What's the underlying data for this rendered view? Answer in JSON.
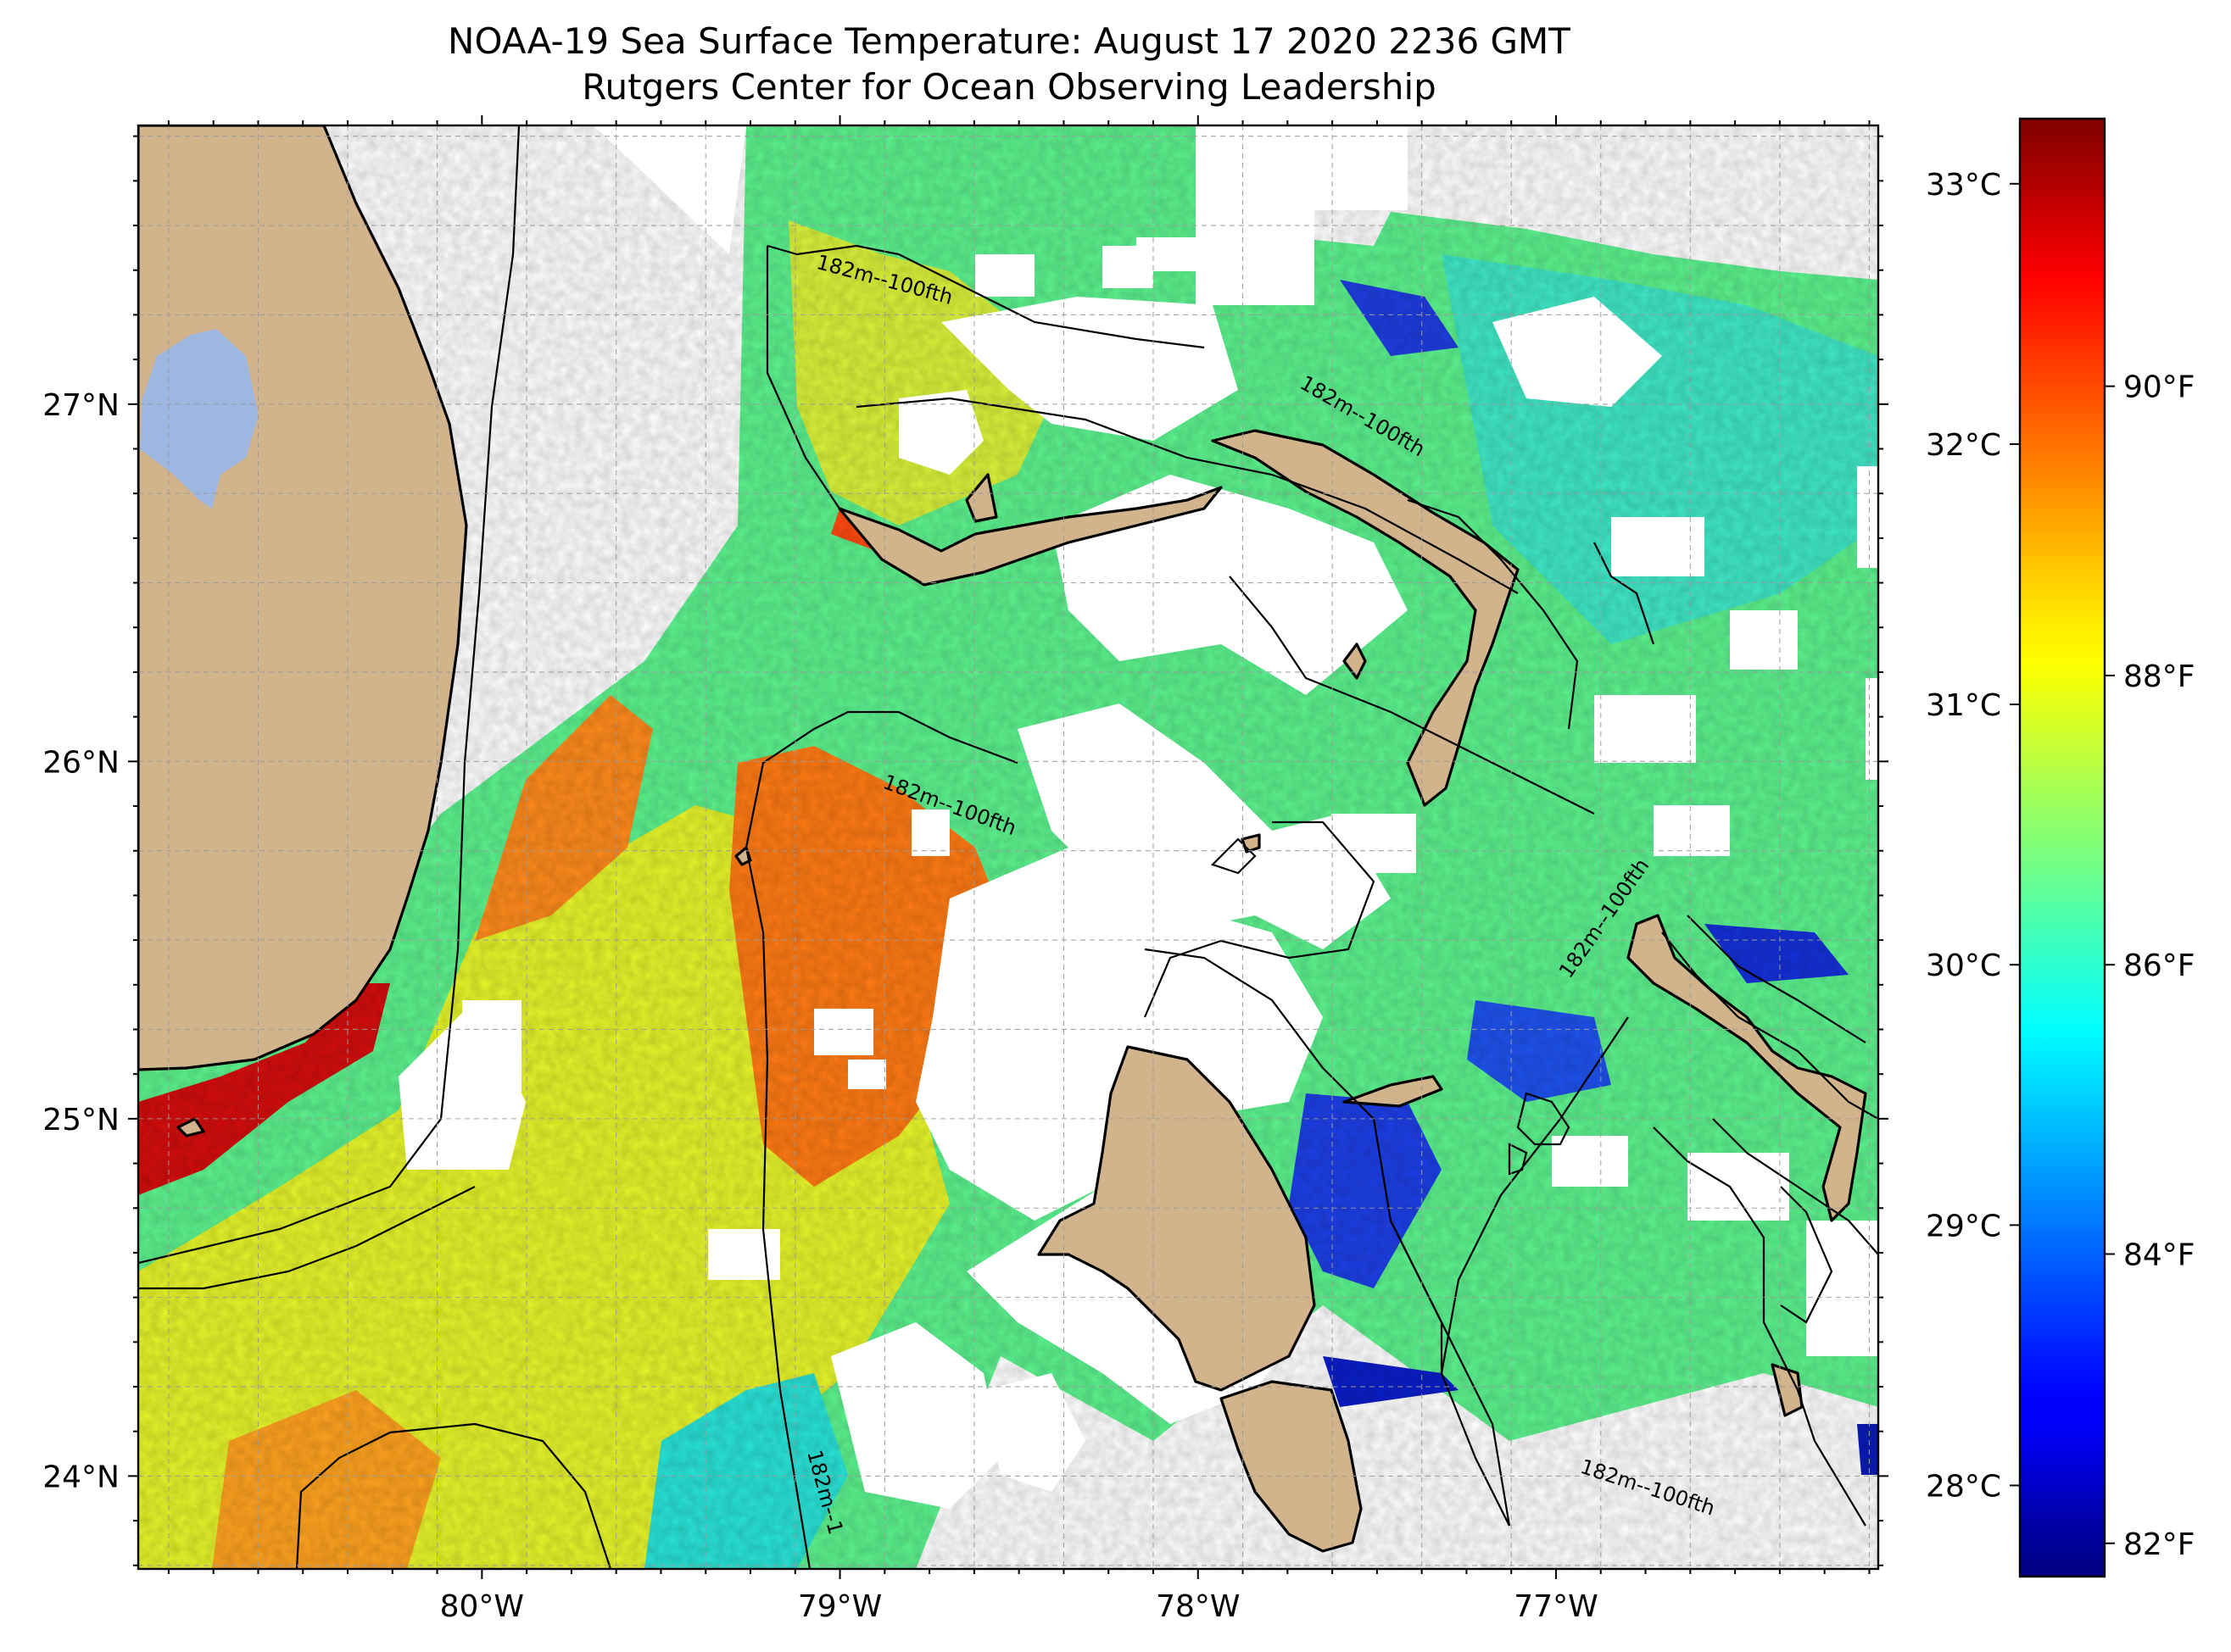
{
  "title": {
    "line1": "NOAA-19 Sea Surface Temperature: August 17 2020 2236 GMT",
    "line2": "Rutgers Center for Ocean Observing Leadership"
  },
  "map": {
    "lon_range": [
      -80.96,
      -76.1
    ],
    "lat_range": [
      23.74,
      27.78
    ],
    "gridlines": true,
    "land_color": "#d2b48c",
    "lake_color": "#9db7e1",
    "lon_ticks": [
      {
        "value": -80,
        "label": "80°W"
      },
      {
        "value": -79,
        "label": "79°W"
      },
      {
        "value": -78,
        "label": "78°W"
      },
      {
        "value": -77,
        "label": "77°W"
      }
    ],
    "lat_ticks": [
      {
        "value": 27,
        "label": "27°N"
      },
      {
        "value": 26,
        "label": "26°N"
      },
      {
        "value": 25,
        "label": "25°N"
      },
      {
        "value": 24,
        "label": "24°N"
      }
    ],
    "contour_labels": [
      {
        "text": "182m--100fth",
        "lon": -78.88,
        "lat": 27.33,
        "angle": 15
      },
      {
        "text": "182m--100fth",
        "lon": -77.55,
        "lat": 26.95,
        "angle": 30
      },
      {
        "text": "182m--100fth",
        "lon": -78.7,
        "lat": 25.86,
        "angle": 20
      },
      {
        "text": "182m--100fth",
        "lon": -76.85,
        "lat": 25.55,
        "angle": -55
      },
      {
        "text": "182m--100fth",
        "lon": -76.75,
        "lat": 23.95,
        "angle": 18
      },
      {
        "text": "182m--1",
        "lon": -79.06,
        "lat": 23.95,
        "angle": 75
      }
    ]
  },
  "colorbar": {
    "min_c": 27.65,
    "max_c": 33.25,
    "colormap": "jet",
    "celsius_ticks": [
      {
        "value": 33,
        "label": "33°C"
      },
      {
        "value": 32,
        "label": "32°C"
      },
      {
        "value": 31,
        "label": "31°C"
      },
      {
        "value": 30,
        "label": "30°C"
      },
      {
        "value": 29,
        "label": "29°C"
      },
      {
        "value": 28,
        "label": "28°C"
      }
    ],
    "fahrenheit_ticks": [
      {
        "value": 90,
        "label": "90°F"
      },
      {
        "value": 88,
        "label": "88°F"
      },
      {
        "value": 86,
        "label": "86°F"
      },
      {
        "value": 84,
        "label": "84°F"
      },
      {
        "value": 82,
        "label": "82°F"
      }
    ]
  }
}
